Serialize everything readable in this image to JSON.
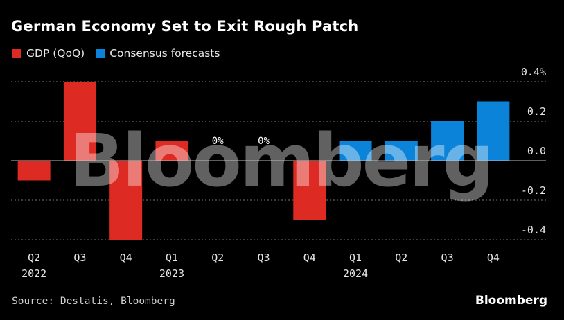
{
  "title": "German Economy Set to Exit Rough Patch",
  "source": "Source: Destatis, Bloomberg",
  "brand": "Bloomberg",
  "watermark": "Bloomberg",
  "colors": {
    "background": "#000000",
    "gdp": "#dd2a22",
    "forecast": "#0a83d9",
    "grid": "#777777"
  },
  "chart_data": {
    "type": "bar",
    "categories": [
      "Q2",
      "Q3",
      "Q4",
      "Q1",
      "Q2",
      "Q3",
      "Q4",
      "Q1",
      "Q2",
      "Q3",
      "Q4"
    ],
    "year_labels": [
      "2022",
      "",
      "",
      "2023",
      "",
      "",
      "",
      "2024",
      "",
      "",
      ""
    ],
    "series": [
      {
        "name": "GDP (QoQ)",
        "values": [
          -0.1,
          0.4,
          -0.4,
          0.1,
          0.0,
          0.0,
          -0.3,
          null,
          null,
          null,
          null
        ]
      },
      {
        "name": "Consensus forecasts",
        "values": [
          null,
          null,
          null,
          null,
          null,
          null,
          null,
          0.1,
          0.1,
          0.2,
          0.3
        ]
      }
    ],
    "data_labels": [
      "",
      "",
      "",
      "",
      "0%",
      "0%",
      "",
      "",
      "",
      "",
      ""
    ],
    "yticks": [
      {
        "value": 0.4,
        "label": "0.4%"
      },
      {
        "value": 0.2,
        "label": "0.2"
      },
      {
        "value": 0.0,
        "label": "0.0"
      },
      {
        "value": -0.2,
        "label": "-0.2"
      },
      {
        "value": -0.4,
        "label": "-0.4"
      }
    ],
    "ylim": [
      -0.4,
      0.4
    ],
    "grid": true,
    "legend_position": "top-left",
    "xlabel": "",
    "ylabel": ""
  }
}
